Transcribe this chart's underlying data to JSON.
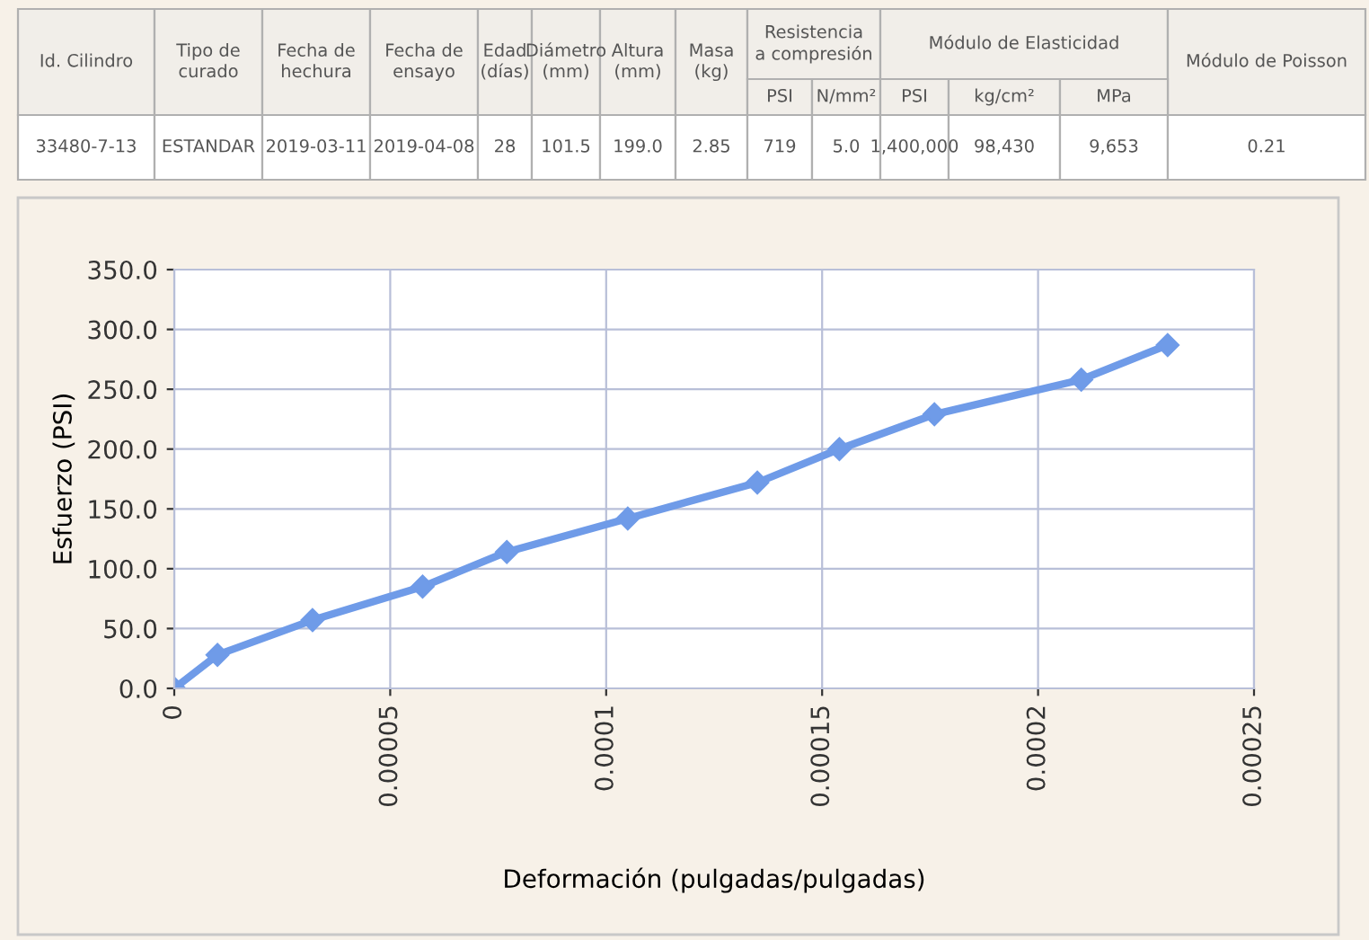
{
  "chart_data": [
    {
      "type": "other",
      "annotations": [
        "Id. Cilindro",
        "Tipo de curado",
        "Fecha de hechura",
        "Fecha de ensayo",
        "Edad (días)",
        "Diámetro (mm)",
        "Altura (mm)",
        "Masa (kg)",
        "Resistencia a compresión",
        "Módulo de Elasticidad",
        "Módulo de Poisson",
        "PSI",
        "N/mm²",
        "PSI",
        "kg/cm²",
        "MPa",
        "33480-7-13",
        "ESTANDAR",
        "2019-03-11",
        "2019-04-08",
        "28",
        "101.5",
        "199.0",
        "2.85",
        "719",
        "5.0",
        "1,400,000",
        "98,430",
        "9,653",
        "0.21"
      ]
    },
    {
      "type": "line",
      "xlabel": "Deformación (pulgadas/pulgadas)",
      "ylabel": "Esfuerzo (PSI)",
      "x": [
        0,
        1e-05,
        3.2e-05,
        5.75e-05,
        7.7e-05,
        0.000105,
        0.000135,
        0.000154,
        0.000176,
        0.00021,
        0.00023
      ],
      "series": [
        {
          "color": "#6f9be8",
          "values": [
            0,
            28,
            57,
            85,
            114,
            142,
            172,
            200,
            229,
            258,
            287
          ]
        }
      ],
      "marker": "diamond",
      "line_style": "solid",
      "grid": true,
      "xlim": [
        0,
        0.00025
      ],
      "ylim": [
        0,
        350
      ],
      "xticks": [
        0,
        {
          "value": 5e-05,
          "label": "0.00005"
        },
        {
          "value": 0.0001,
          "label": "0.0001"
        },
        {
          "value": 0.00015,
          "label": "0.00015"
        },
        {
          "value": 0.0002,
          "label": "0.0002"
        },
        {
          "value": 0.00025,
          "label": "0.00025"
        }
      ],
      "yticks": [
        {
          "value": 0,
          "label": "0.0"
        },
        {
          "value": 50,
          "label": "50.0"
        },
        {
          "value": 100,
          "label": "100.0"
        },
        {
          "value": 150,
          "label": "150.0"
        },
        {
          "value": 200,
          "label": "200.0"
        },
        {
          "value": 250,
          "label": "250.0"
        },
        {
          "value": 300,
          "label": "300.0"
        },
        {
          "value": 350,
          "label": "350.0"
        }
      ]
    }
  ]
}
